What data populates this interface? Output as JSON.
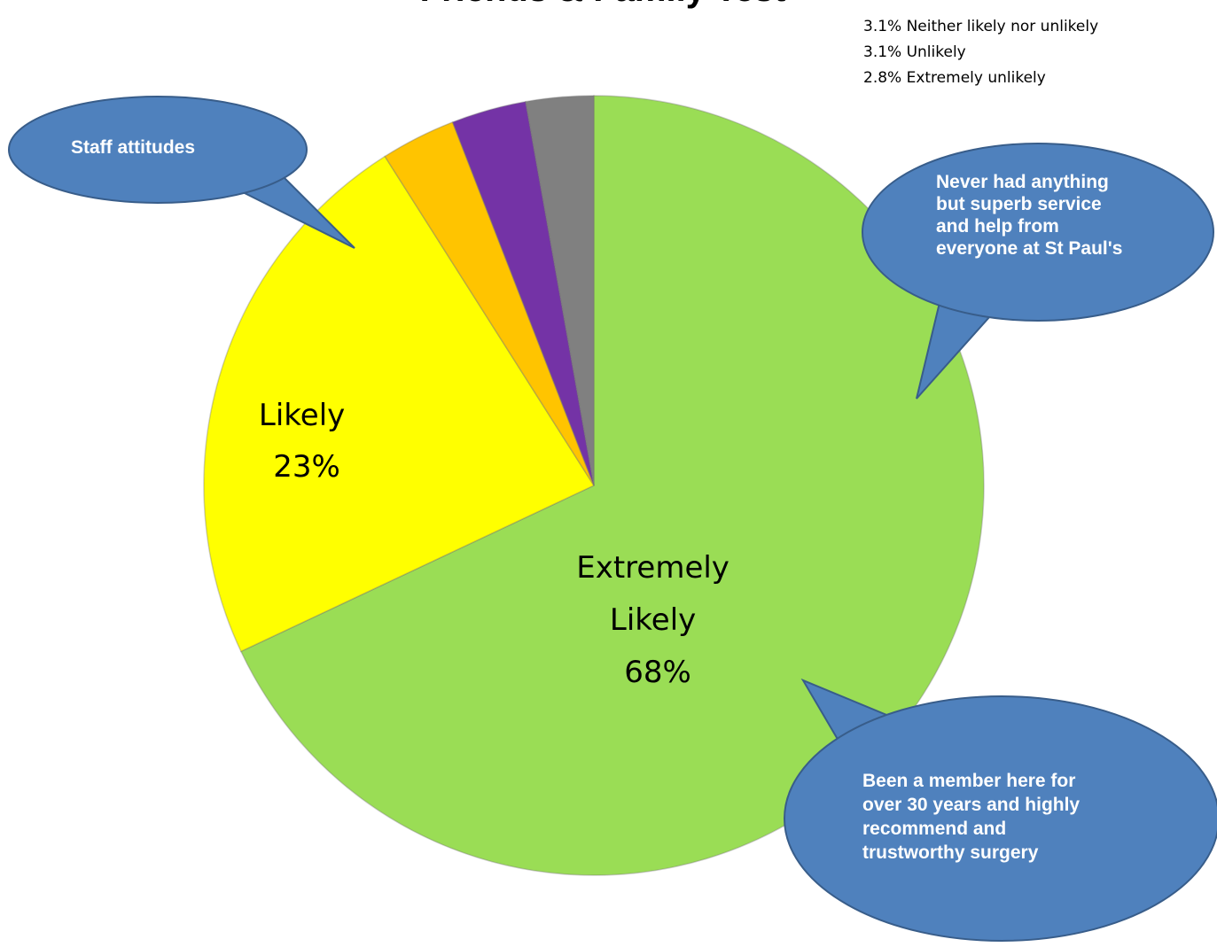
{
  "chart_data": {
    "type": "pie",
    "title": "Friends & Family Test",
    "slices": [
      {
        "label": "Extremely Likely",
        "value": 68,
        "color": "#9ADD55"
      },
      {
        "label": "Likely",
        "value": 23,
        "color": "#FFFF00"
      },
      {
        "label": "Neither likely nor unlikely",
        "value": 3.1,
        "color": "#FFC400"
      },
      {
        "label": "Unlikely",
        "value": 3.1,
        "color": "#7433A6"
      },
      {
        "label": "Extremely unlikely",
        "value": 2.8,
        "color": "#808080"
      }
    ],
    "slice_labels": {
      "extremely_likely": [
        "Extremely",
        "Likely",
        "68%"
      ],
      "likely": [
        "Likely",
        "23%"
      ]
    },
    "legend_notes": [
      "3.1% Neither likely nor unlikely",
      "3.1% Unlikely",
      "2.8% Extremely unlikely"
    ],
    "callouts": {
      "staff": "Staff attitudes",
      "superb": [
        "Never had anything",
        "but superb service",
        "and help from",
        "everyone at St Paul's"
      ],
      "member": [
        "Been a member here for",
        "over 30 years and highly",
        "recommend and",
        "trustworthy surgery"
      ]
    },
    "callout_color": "#4F81BD"
  }
}
